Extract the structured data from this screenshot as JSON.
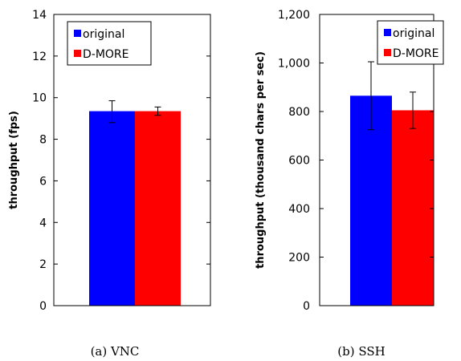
{
  "chart_data": [
    {
      "type": "bar",
      "caption": "(a) VNC",
      "ylabel": "throughput (fps)",
      "ylim": [
        0,
        14
      ],
      "yticks": [
        0,
        2,
        4,
        6,
        8,
        10,
        12,
        14
      ],
      "ytick_labels": [
        "0",
        "2",
        "4",
        "6",
        "8",
        "10",
        "12",
        "14"
      ],
      "legend_position": "top-left",
      "series": [
        {
          "name": "original",
          "value": 9.35,
          "error": [
            8.8,
            9.85
          ],
          "color": "#0000ff"
        },
        {
          "name": "D-MORE",
          "value": 9.35,
          "error": [
            9.15,
            9.55
          ],
          "color": "#ff0000"
        }
      ]
    },
    {
      "type": "bar",
      "caption": "(b) SSH",
      "ylabel": "throughput (thousand chars per sec)",
      "ylim": [
        0,
        1200
      ],
      "yticks": [
        0,
        200,
        400,
        600,
        800,
        1000,
        1200
      ],
      "ytick_labels": [
        "0",
        "200",
        "400",
        "600",
        "800",
        "1,000",
        "1,200"
      ],
      "legend_position": "top-right",
      "series": [
        {
          "name": "original",
          "value": 865,
          "error": [
            725,
            1005
          ],
          "color": "#0000ff"
        },
        {
          "name": "D-MORE",
          "value": 805,
          "error": [
            730,
            880
          ],
          "color": "#ff0000"
        }
      ]
    }
  ]
}
